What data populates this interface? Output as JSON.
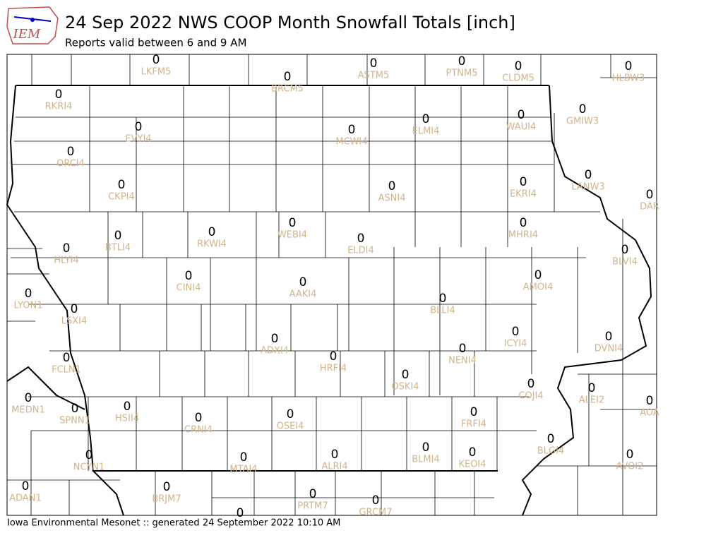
{
  "header": {
    "logo_text": "IEM",
    "title": "24 Sep 2022 NWS COOP Month Snowfall Totals [inch]",
    "subtitle": "Reports valid between 6 and 9 AM"
  },
  "stations": [
    {
      "id": "LKFM5",
      "value": 0
    },
    {
      "id": "ASTM5",
      "value": 0
    },
    {
      "id": "PTNM5",
      "value": 0
    },
    {
      "id": "CLDM5",
      "value": 0
    },
    {
      "id": "HLBW3",
      "value": 0
    },
    {
      "id": "BRCM5",
      "value": 0
    },
    {
      "id": "RKRI4",
      "value": 0
    },
    {
      "id": "EVYI4",
      "value": 0
    },
    {
      "id": "MCWI4",
      "value": 0
    },
    {
      "id": "ELMI4",
      "value": 0
    },
    {
      "id": "WAUI4",
      "value": 0
    },
    {
      "id": "GMIW3",
      "value": 0
    },
    {
      "id": "ORCI4",
      "value": 0
    },
    {
      "id": "CKPI4",
      "value": 0
    },
    {
      "id": "ASNI4",
      "value": 0
    },
    {
      "id": "EKRI4",
      "value": 0
    },
    {
      "id": "LANW3",
      "value": 0
    },
    {
      "id": "DAR",
      "value": 0
    },
    {
      "id": "BTLI4",
      "value": 0
    },
    {
      "id": "RKWI4",
      "value": 0
    },
    {
      "id": "WEBI4",
      "value": 0
    },
    {
      "id": "ELDI4",
      "value": 0
    },
    {
      "id": "MHRI4",
      "value": 0
    },
    {
      "id": "HLYI4",
      "value": 0
    },
    {
      "id": "BLVI4",
      "value": 0
    },
    {
      "id": "CINI4",
      "value": 0
    },
    {
      "id": "AAKI4",
      "value": 0
    },
    {
      "id": "AMOI4",
      "value": 0
    },
    {
      "id": "LYON1",
      "value": 0
    },
    {
      "id": "LSXI4",
      "value": 0
    },
    {
      "id": "BLLI4",
      "value": 0
    },
    {
      "id": "ICYI4",
      "value": 0
    },
    {
      "id": "DVNI4",
      "value": 0
    },
    {
      "id": "ADXI4",
      "value": 0
    },
    {
      "id": "HRFI4",
      "value": 0
    },
    {
      "id": "NENI4",
      "value": 0
    },
    {
      "id": "FCLN1",
      "value": 0
    },
    {
      "id": "OSKI4",
      "value": 0
    },
    {
      "id": "COJI4",
      "value": 0
    },
    {
      "id": "ALEI2",
      "value": 0
    },
    {
      "id": "MEDN1",
      "value": 0
    },
    {
      "id": "SPNN1",
      "value": 0
    },
    {
      "id": "HSII4",
      "value": 0
    },
    {
      "id": "CRNI4",
      "value": 0
    },
    {
      "id": "OSEI4",
      "value": 0
    },
    {
      "id": "FRFI4",
      "value": 0
    },
    {
      "id": "AOA",
      "value": 0
    },
    {
      "id": "BLGI4",
      "value": 0
    },
    {
      "id": "BLMI4",
      "value": 0
    },
    {
      "id": "KEOI4",
      "value": 0
    },
    {
      "id": "ALRI4",
      "value": 0
    },
    {
      "id": "MTAI4",
      "value": 0
    },
    {
      "id": "NCYN1",
      "value": 0
    },
    {
      "id": "AVOI2",
      "value": 0
    },
    {
      "id": "ADAN1",
      "value": 0
    },
    {
      "id": "BRJM7",
      "value": 0
    },
    {
      "id": "PRTM7",
      "value": 0
    },
    {
      "id": "GRCM7",
      "value": 0
    },
    {
      "value": 0
    }
  ],
  "footer": "Iowa Environmental Mesonet :: generated 24 September 2022 10:10 AM"
}
